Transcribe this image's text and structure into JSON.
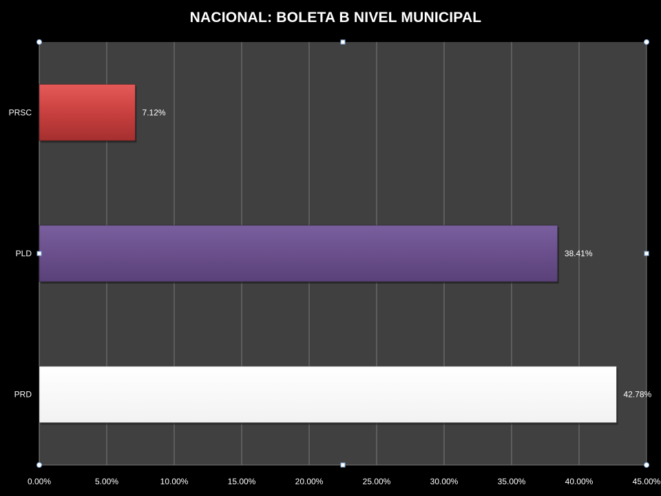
{
  "chart_data": {
    "type": "bar",
    "orientation": "horizontal",
    "title": "NACIONAL: BOLETA B NIVEL MUNICIPAL",
    "categories": [
      "PRSC",
      "PLD",
      "PRD"
    ],
    "values": [
      7.12,
      38.41,
      42.78
    ],
    "data_labels": [
      "7.12%",
      "38.41%",
      "42.78%"
    ],
    "bar_colors": [
      "#c8403f",
      "#6a4f8c",
      "#ffffff"
    ],
    "xlim": [
      0,
      45
    ],
    "x_ticks": [
      0,
      5,
      10,
      15,
      20,
      25,
      30,
      35,
      40,
      45
    ],
    "x_tick_labels": [
      "0.00%",
      "5.00%",
      "10.00%",
      "15.00%",
      "20.00%",
      "25.00%",
      "30.00%",
      "35.00%",
      "40.00%",
      "45.00%"
    ],
    "xlabel": "",
    "ylabel": "",
    "grid": "vertical",
    "legend": "none",
    "plot_background": "#404040",
    "page_background": "#000000"
  }
}
